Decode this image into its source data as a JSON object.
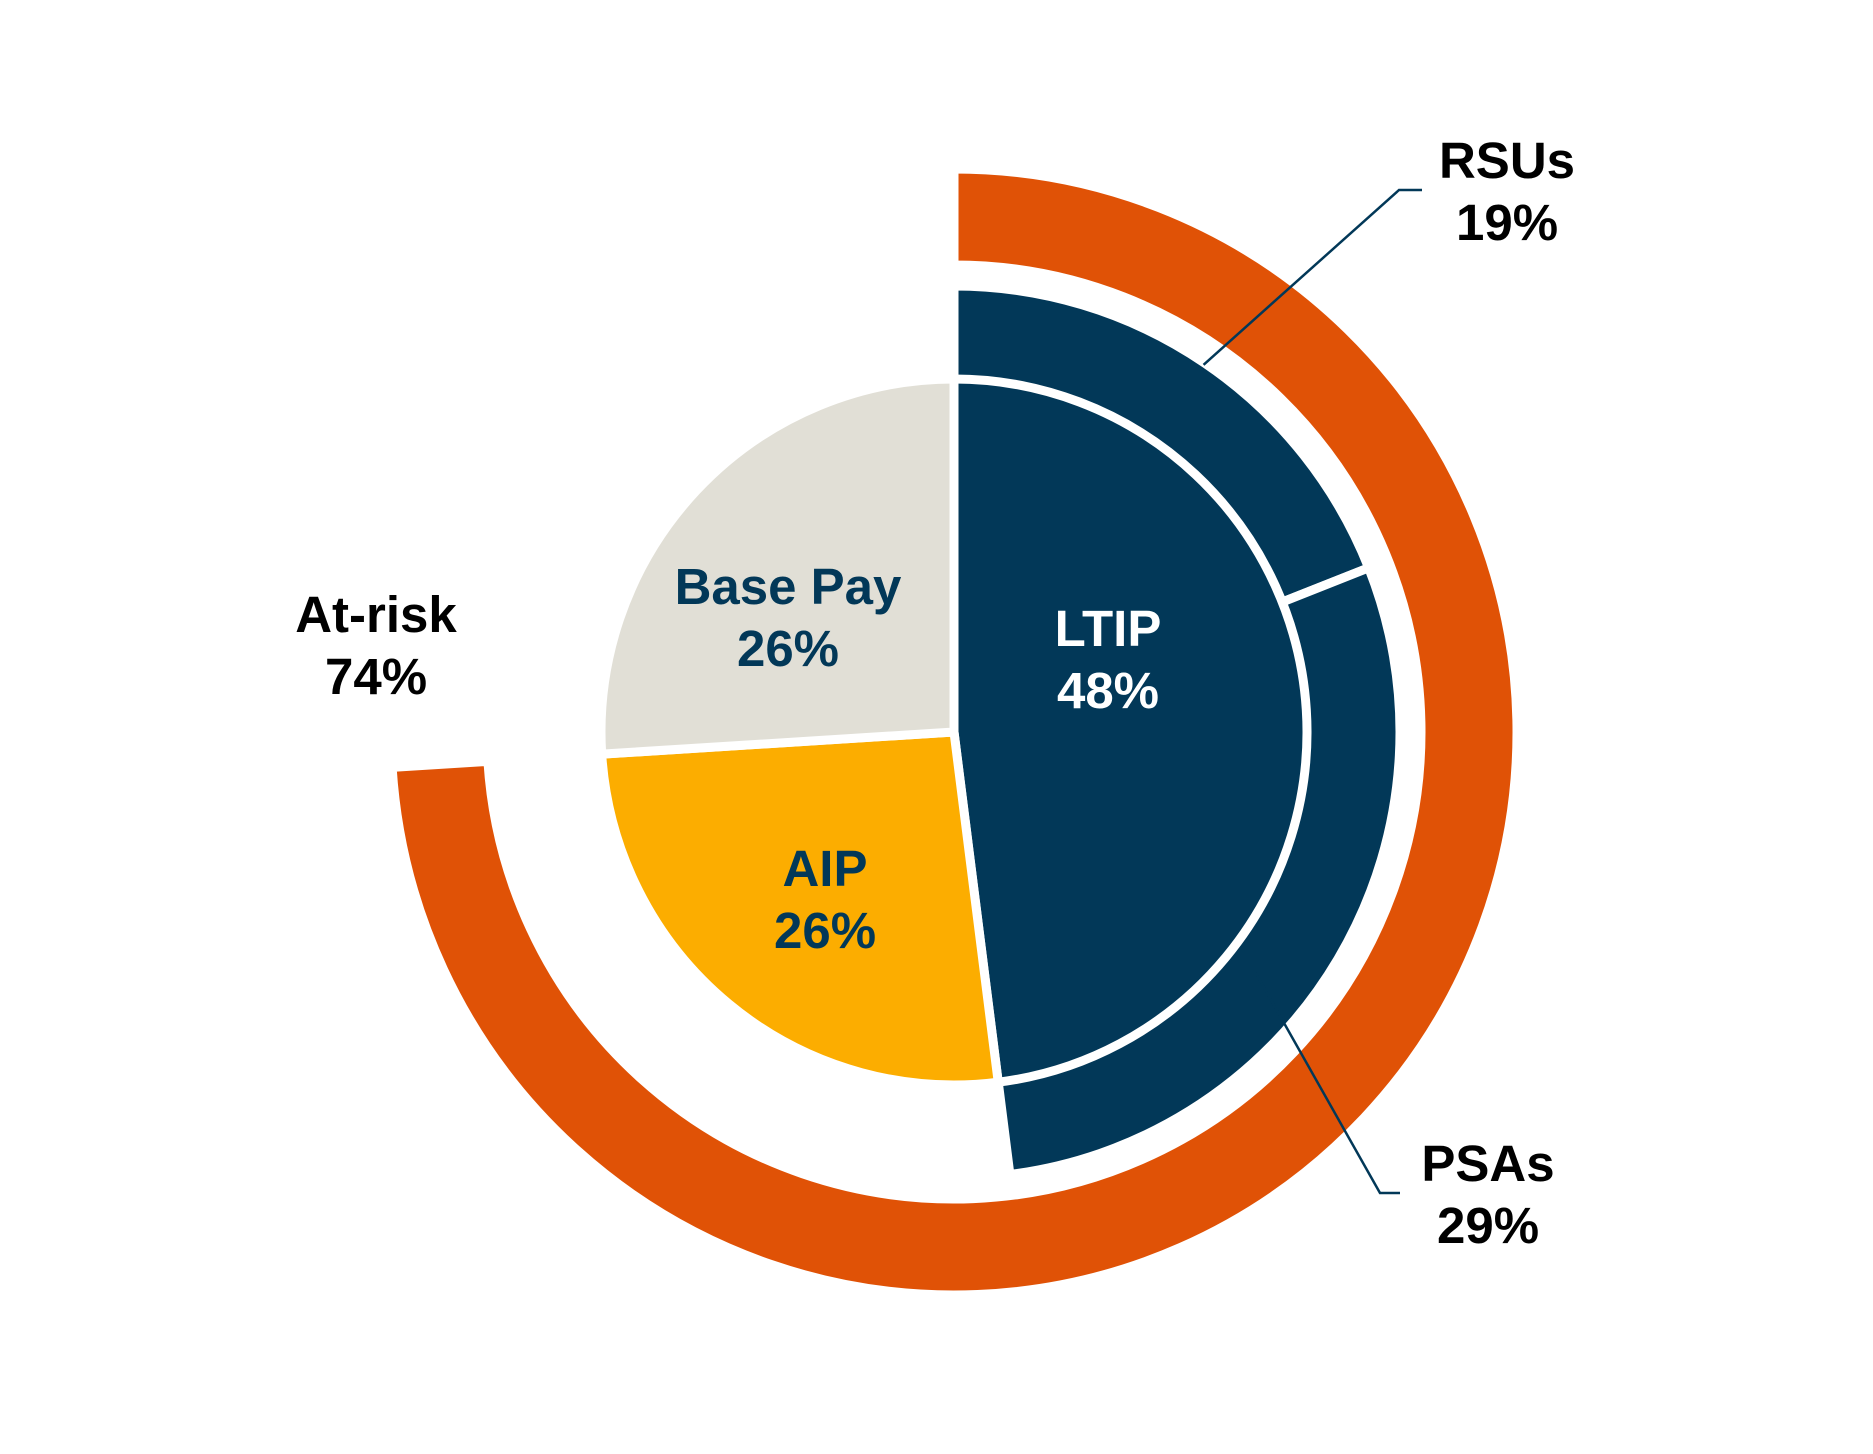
{
  "chart_data": {
    "type": "nested-donut",
    "title": "",
    "colors": {
      "at_risk": "#e05206",
      "ltip": "#023858",
      "base_pay": "#e1dfd6",
      "aip": "#fcad00",
      "base_pay_text": "#023858",
      "aip_text": "#023858",
      "ltip_text": "#ffffff",
      "outer_text": "#000000",
      "leader_line": "#023858"
    },
    "rings": {
      "outer": [
        {
          "name": "At-risk",
          "value": 74,
          "label": "74%"
        }
      ],
      "middle": [
        {
          "name": "RSUs",
          "value": 19,
          "label": "19%"
        },
        {
          "name": "PSAs",
          "value": 29,
          "label": "29%"
        }
      ],
      "inner": [
        {
          "name": "LTIP",
          "value": 48,
          "label": "48%"
        },
        {
          "name": "AIP",
          "value": 26,
          "label": "26%"
        },
        {
          "name": "Base Pay",
          "value": 26,
          "label": "26%"
        }
      ]
    }
  }
}
